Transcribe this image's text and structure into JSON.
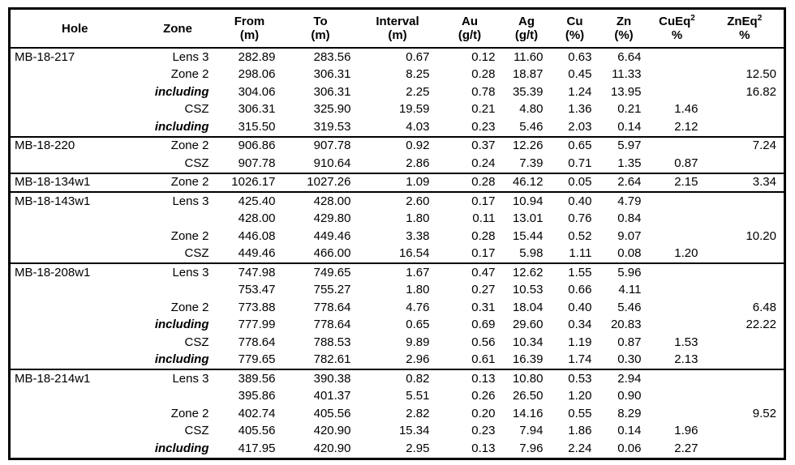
{
  "colors": {
    "background": "#ffffff",
    "border": "#000000",
    "text": "#000000"
  },
  "columns": [
    {
      "key": "hole",
      "label": "Hole",
      "sub": ""
    },
    {
      "key": "zone",
      "label": "Zone",
      "sub": ""
    },
    {
      "key": "from",
      "label": "From",
      "sub": "(m)"
    },
    {
      "key": "to",
      "label": "To",
      "sub": "(m)"
    },
    {
      "key": "interval",
      "label": "Interval",
      "sub": "(m)"
    },
    {
      "key": "au",
      "label": "Au",
      "sub": "(g/t)"
    },
    {
      "key": "ag",
      "label": "Ag",
      "sub": "(g/t)"
    },
    {
      "key": "cu",
      "label": "Cu",
      "sub": "(%)"
    },
    {
      "key": "zn",
      "label": "Zn",
      "sub": "(%)"
    },
    {
      "key": "cueq",
      "label": "CuEq",
      "sup": "2",
      "sub": "%"
    },
    {
      "key": "zneq",
      "label": "ZnEq",
      "sup": "2",
      "sub": "%"
    }
  ],
  "value_keys": [
    "from",
    "to",
    "interval",
    "au",
    "ag",
    "cu",
    "zn",
    "cueq",
    "zneq"
  ],
  "groups": [
    {
      "hole": "MB-18-217",
      "rows": [
        {
          "zone": "Lens 3",
          "em": false,
          "values": [
            "282.89",
            "283.56",
            "0.67",
            "0.12",
            "11.60",
            "0.63",
            "6.64",
            "",
            ""
          ]
        },
        {
          "zone": "Zone 2",
          "em": false,
          "values": [
            "298.06",
            "306.31",
            "8.25",
            "0.28",
            "18.87",
            "0.45",
            "11.33",
            "",
            "12.50"
          ]
        },
        {
          "zone": "including",
          "em": true,
          "values": [
            "304.06",
            "306.31",
            "2.25",
            "0.78",
            "35.39",
            "1.24",
            "13.95",
            "",
            "16.82"
          ]
        },
        {
          "zone": "CSZ",
          "em": false,
          "values": [
            "306.31",
            "325.90",
            "19.59",
            "0.21",
            "4.80",
            "1.36",
            "0.21",
            "1.46",
            ""
          ]
        },
        {
          "zone": "including",
          "em": true,
          "values": [
            "315.50",
            "319.53",
            "4.03",
            "0.23",
            "5.46",
            "2.03",
            "0.14",
            "2.12",
            ""
          ]
        }
      ]
    },
    {
      "hole": "MB-18-220",
      "rows": [
        {
          "zone": "Zone 2",
          "em": false,
          "values": [
            "906.86",
            "907.78",
            "0.92",
            "0.37",
            "12.26",
            "0.65",
            "5.97",
            "",
            "7.24"
          ]
        },
        {
          "zone": "CSZ",
          "em": false,
          "values": [
            "907.78",
            "910.64",
            "2.86",
            "0.24",
            "7.39",
            "0.71",
            "1.35",
            "0.87",
            ""
          ]
        }
      ]
    },
    {
      "hole": "MB-18-134w1",
      "rows": [
        {
          "zone": "Zone 2",
          "em": false,
          "values": [
            "1026.17",
            "1027.26",
            "1.09",
            "0.28",
            "46.12",
            "0.05",
            "2.64",
            "2.15",
            "3.34"
          ]
        }
      ]
    },
    {
      "hole": "MB-18-143w1",
      "rows": [
        {
          "zone": "Lens 3",
          "em": false,
          "values": [
            "425.40",
            "428.00",
            "2.60",
            "0.17",
            "10.94",
            "0.40",
            "4.79",
            "",
            ""
          ]
        },
        {
          "zone": "",
          "em": false,
          "values": [
            "428.00",
            "429.80",
            "1.80",
            "0.11",
            "13.01",
            "0.76",
            "0.84",
            "",
            ""
          ]
        },
        {
          "zone": "Zone 2",
          "em": false,
          "values": [
            "446.08",
            "449.46",
            "3.38",
            "0.28",
            "15.44",
            "0.52",
            "9.07",
            "",
            "10.20"
          ]
        },
        {
          "zone": "CSZ",
          "em": false,
          "values": [
            "449.46",
            "466.00",
            "16.54",
            "0.17",
            "5.98",
            "1.11",
            "0.08",
            "1.20",
            ""
          ]
        }
      ]
    },
    {
      "hole": "MB-18-208w1",
      "rows": [
        {
          "zone": "Lens 3",
          "em": false,
          "values": [
            "747.98",
            "749.65",
            "1.67",
            "0.47",
            "12.62",
            "1.55",
            "5.96",
            "",
            ""
          ]
        },
        {
          "zone": "",
          "em": false,
          "values": [
            "753.47",
            "755.27",
            "1.80",
            "0.27",
            "10.53",
            "0.66",
            "4.11",
            "",
            ""
          ]
        },
        {
          "zone": "Zone 2",
          "em": false,
          "values": [
            "773.88",
            "778.64",
            "4.76",
            "0.31",
            "18.04",
            "0.40",
            "5.46",
            "",
            "6.48"
          ]
        },
        {
          "zone": "including",
          "em": true,
          "values": [
            "777.99",
            "778.64",
            "0.65",
            "0.69",
            "29.60",
            "0.34",
            "20.83",
            "",
            "22.22"
          ]
        },
        {
          "zone": "CSZ",
          "em": false,
          "values": [
            "778.64",
            "788.53",
            "9.89",
            "0.56",
            "10.34",
            "1.19",
            "0.87",
            "1.53",
            ""
          ]
        },
        {
          "zone": "including",
          "em": true,
          "values": [
            "779.65",
            "782.61",
            "2.96",
            "0.61",
            "16.39",
            "1.74",
            "0.30",
            "2.13",
            ""
          ]
        }
      ]
    },
    {
      "hole": "MB-18-214w1",
      "rows": [
        {
          "zone": "Lens 3",
          "em": false,
          "values": [
            "389.56",
            "390.38",
            "0.82",
            "0.13",
            "10.80",
            "0.53",
            "2.94",
            "",
            ""
          ]
        },
        {
          "zone": "",
          "em": false,
          "values": [
            "395.86",
            "401.37",
            "5.51",
            "0.26",
            "26.50",
            "1.20",
            "0.90",
            "",
            ""
          ]
        },
        {
          "zone": "Zone 2",
          "em": false,
          "values": [
            "402.74",
            "405.56",
            "2.82",
            "0.20",
            "14.16",
            "0.55",
            "8.29",
            "",
            "9.52"
          ]
        },
        {
          "zone": "CSZ",
          "em": false,
          "values": [
            "405.56",
            "420.90",
            "15.34",
            "0.23",
            "7.94",
            "1.86",
            "0.14",
            "1.96",
            ""
          ]
        },
        {
          "zone": "including",
          "em": true,
          "values": [
            "417.95",
            "420.90",
            "2.95",
            "0.13",
            "7.96",
            "2.24",
            "0.06",
            "2.27",
            ""
          ]
        }
      ]
    }
  ]
}
